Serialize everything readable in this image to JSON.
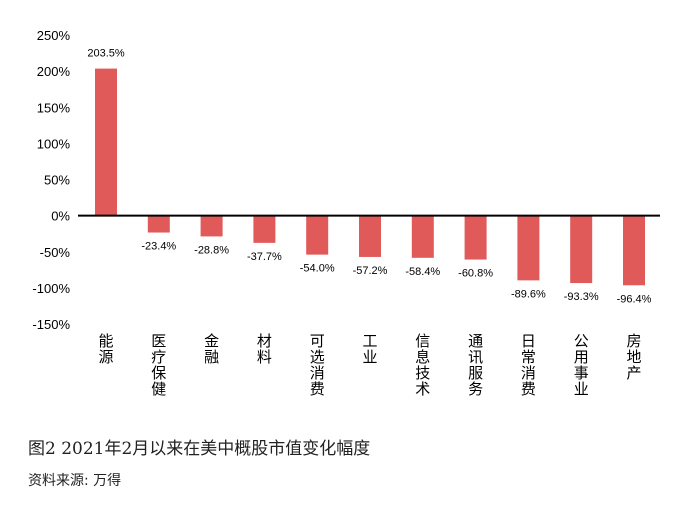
{
  "chart_data": {
    "type": "bar",
    "categories": [
      "能源",
      "医疗保健",
      "金融",
      "材料",
      "可选消费",
      "工业",
      "信息技术",
      "通讯服务",
      "日常消费",
      "公用事业",
      "房地产"
    ],
    "values": [
      203.5,
      -23.4,
      -28.8,
      -37.7,
      -54.0,
      -57.2,
      -58.4,
      -60.8,
      -89.6,
      -93.3,
      -96.4
    ],
    "data_labels": [
      "203.5%",
      "-23.4%",
      "-28.8%",
      "-37.7%",
      "-54.0%",
      "-57.2%",
      "-58.4%",
      "-60.8%",
      "-89.6%",
      "-93.3%",
      "-96.4%"
    ],
    "yticks": [
      "250%",
      "200%",
      "150%",
      "100%",
      "50%",
      "0%",
      "-50%",
      "-100%",
      "-150%"
    ],
    "ylim": [
      -150,
      250
    ],
    "bar_color": "#e05a5a",
    "grid": false
  },
  "figure": {
    "caption": "图2    2021年2月以来在美中概股市值变化幅度",
    "source": "资料来源: 万得"
  }
}
